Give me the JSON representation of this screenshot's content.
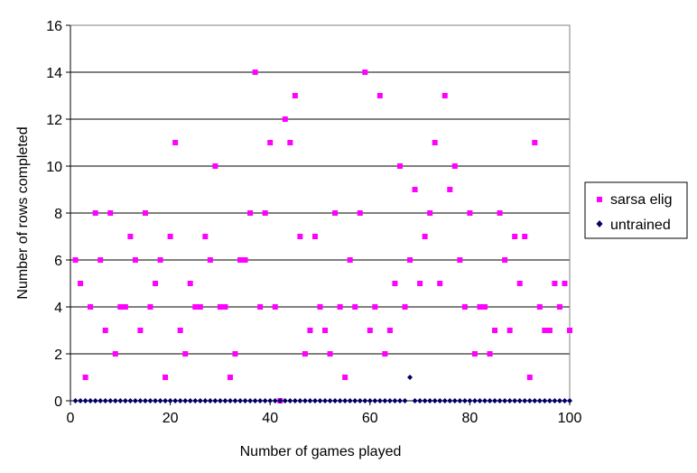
{
  "chart_data": {
    "type": "scatter",
    "title": "",
    "xlabel": "Number of games played",
    "ylabel": "Number of rows completed",
    "xlim": [
      0,
      100
    ],
    "ylim": [
      0,
      16
    ],
    "x_ticks": [
      0,
      20,
      40,
      60,
      80,
      100
    ],
    "y_ticks": [
      0,
      2,
      4,
      6,
      8,
      10,
      12,
      14,
      16
    ],
    "grid": "horizontal major gridlines",
    "legend_position": "right",
    "series": [
      {
        "name": "sarsa elig",
        "color": "#ff00ff",
        "marker": "square",
        "points": [
          [
            1,
            6
          ],
          [
            2,
            5
          ],
          [
            3,
            1
          ],
          [
            4,
            4
          ],
          [
            5,
            8
          ],
          [
            6,
            6
          ],
          [
            7,
            3
          ],
          [
            8,
            8
          ],
          [
            9,
            2
          ],
          [
            10,
            4
          ],
          [
            11,
            4
          ],
          [
            12,
            7
          ],
          [
            13,
            6
          ],
          [
            14,
            3
          ],
          [
            15,
            8
          ],
          [
            16,
            4
          ],
          [
            17,
            5
          ],
          [
            18,
            6
          ],
          [
            19,
            1
          ],
          [
            20,
            7
          ],
          [
            21,
            11
          ],
          [
            22,
            3
          ],
          [
            23,
            2
          ],
          [
            24,
            5
          ],
          [
            25,
            4
          ],
          [
            26,
            4
          ],
          [
            27,
            7
          ],
          [
            28,
            6
          ],
          [
            29,
            10
          ],
          [
            30,
            4
          ],
          [
            31,
            4
          ],
          [
            32,
            1
          ],
          [
            33,
            2
          ],
          [
            34,
            6
          ],
          [
            35,
            6
          ],
          [
            36,
            8
          ],
          [
            37,
            14
          ],
          [
            38,
            4
          ],
          [
            39,
            8
          ],
          [
            40,
            11
          ],
          [
            41,
            4
          ],
          [
            42,
            0
          ],
          [
            43,
            12
          ],
          [
            44,
            11
          ],
          [
            45,
            13
          ],
          [
            46,
            7
          ],
          [
            47,
            2
          ],
          [
            48,
            3
          ],
          [
            49,
            7
          ],
          [
            50,
            4
          ],
          [
            51,
            3
          ],
          [
            52,
            2
          ],
          [
            53,
            8
          ],
          [
            54,
            4
          ],
          [
            55,
            1
          ],
          [
            56,
            6
          ],
          [
            57,
            4
          ],
          [
            58,
            8
          ],
          [
            59,
            14
          ],
          [
            60,
            3
          ],
          [
            61,
            4
          ],
          [
            62,
            13
          ],
          [
            63,
            2
          ],
          [
            64,
            3
          ],
          [
            65,
            5
          ],
          [
            66,
            10
          ],
          [
            67,
            4
          ],
          [
            68,
            6
          ],
          [
            69,
            9
          ],
          [
            70,
            5
          ],
          [
            71,
            7
          ],
          [
            72,
            8
          ],
          [
            73,
            11
          ],
          [
            74,
            5
          ],
          [
            75,
            13
          ],
          [
            76,
            9
          ],
          [
            77,
            10
          ],
          [
            78,
            6
          ],
          [
            79,
            4
          ],
          [
            80,
            8
          ],
          [
            81,
            2
          ],
          [
            82,
            4
          ],
          [
            83,
            4
          ],
          [
            84,
            2
          ],
          [
            85,
            3
          ],
          [
            86,
            8
          ],
          [
            87,
            6
          ],
          [
            88,
            3
          ],
          [
            89,
            7
          ],
          [
            90,
            5
          ],
          [
            91,
            7
          ],
          [
            92,
            1
          ],
          [
            93,
            11
          ],
          [
            94,
            4
          ],
          [
            95,
            3
          ],
          [
            96,
            3
          ],
          [
            97,
            5
          ],
          [
            98,
            4
          ],
          [
            99,
            5
          ],
          [
            100,
            3
          ]
        ]
      },
      {
        "name": "untrained",
        "color": "#000066",
        "marker": "diamond",
        "points_note": "",
        "points": [
          [
            1,
            0
          ],
          [
            2,
            0
          ],
          [
            3,
            0
          ],
          [
            4,
            0
          ],
          [
            5,
            0
          ],
          [
            6,
            0
          ],
          [
            7,
            0
          ],
          [
            8,
            0
          ],
          [
            9,
            0
          ],
          [
            10,
            0
          ],
          [
            11,
            0
          ],
          [
            12,
            0
          ],
          [
            13,
            0
          ],
          [
            14,
            0
          ],
          [
            15,
            0
          ],
          [
            16,
            0
          ],
          [
            17,
            0
          ],
          [
            18,
            0
          ],
          [
            19,
            0
          ],
          [
            20,
            0
          ],
          [
            21,
            0
          ],
          [
            22,
            0
          ],
          [
            23,
            0
          ],
          [
            24,
            0
          ],
          [
            25,
            0
          ],
          [
            26,
            0
          ],
          [
            27,
            0
          ],
          [
            28,
            0
          ],
          [
            29,
            0
          ],
          [
            30,
            0
          ],
          [
            31,
            0
          ],
          [
            32,
            0
          ],
          [
            33,
            0
          ],
          [
            34,
            0
          ],
          [
            35,
            0
          ],
          [
            36,
            0
          ],
          [
            37,
            0
          ],
          [
            38,
            0
          ],
          [
            39,
            0
          ],
          [
            40,
            0
          ],
          [
            41,
            0
          ],
          [
            42,
            0
          ],
          [
            43,
            0
          ],
          [
            44,
            0
          ],
          [
            45,
            0
          ],
          [
            46,
            0
          ],
          [
            47,
            0
          ],
          [
            48,
            0
          ],
          [
            49,
            0
          ],
          [
            50,
            0
          ],
          [
            51,
            0
          ],
          [
            52,
            0
          ],
          [
            53,
            0
          ],
          [
            54,
            0
          ],
          [
            55,
            0
          ],
          [
            56,
            0
          ],
          [
            57,
            0
          ],
          [
            58,
            0
          ],
          [
            59,
            0
          ],
          [
            60,
            0
          ],
          [
            61,
            0
          ],
          [
            62,
            0
          ],
          [
            63,
            0
          ],
          [
            64,
            0
          ],
          [
            65,
            0
          ],
          [
            66,
            0
          ],
          [
            67,
            0
          ],
          [
            68,
            1
          ],
          [
            69,
            0
          ],
          [
            70,
            0
          ],
          [
            71,
            0
          ],
          [
            72,
            0
          ],
          [
            73,
            0
          ],
          [
            74,
            0
          ],
          [
            75,
            0
          ],
          [
            76,
            0
          ],
          [
            77,
            0
          ],
          [
            78,
            0
          ],
          [
            79,
            0
          ],
          [
            80,
            0
          ],
          [
            81,
            0
          ],
          [
            82,
            0
          ],
          [
            83,
            0
          ],
          [
            84,
            0
          ],
          [
            85,
            0
          ],
          [
            86,
            0
          ],
          [
            87,
            0
          ],
          [
            88,
            0
          ],
          [
            89,
            0
          ],
          [
            90,
            0
          ],
          [
            91,
            0
          ],
          [
            92,
            0
          ],
          [
            93,
            0
          ],
          [
            94,
            0
          ],
          [
            95,
            0
          ],
          [
            96,
            0
          ],
          [
            97,
            0
          ],
          [
            98,
            0
          ],
          [
            99,
            0
          ],
          [
            100,
            0
          ]
        ]
      }
    ]
  }
}
